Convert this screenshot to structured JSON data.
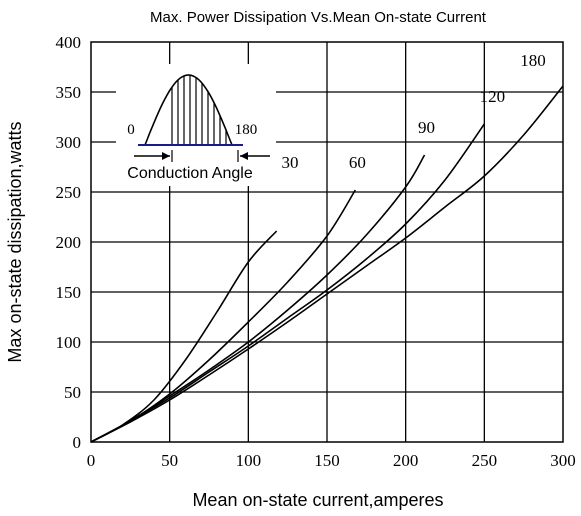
{
  "chart_data": {
    "type": "line",
    "title": "Max. Power Dissipation Vs.Mean On-state Current",
    "xlabel": "Mean on-state current,amperes",
    "ylabel": "Max on-state dissipation,watts",
    "xlim": [
      0,
      300
    ],
    "ylim": [
      0,
      400
    ],
    "xticks": [
      0,
      50,
      100,
      150,
      200,
      250,
      300
    ],
    "yticks": [
      0,
      50,
      100,
      150,
      200,
      250,
      300,
      350,
      400
    ],
    "x_tick_labels": [
      "0",
      "50",
      "100",
      "150",
      "200",
      "250",
      "300"
    ],
    "y_tick_labels": [
      "0",
      "50",
      "100",
      "150",
      "200",
      "250",
      "300",
      "350",
      "400"
    ],
    "grid": true,
    "series": [
      {
        "name": "30",
        "x": [
          0,
          20,
          40,
          60,
          80,
          100,
          118
        ],
        "y": [
          0,
          17,
          42,
          82,
          130,
          180,
          211
        ]
      },
      {
        "name": "60",
        "x": [
          0,
          25,
          50,
          75,
          100,
          125,
          150,
          168
        ],
        "y": [
          0,
          21,
          48,
          82,
          120,
          160,
          206,
          252
        ]
      },
      {
        "name": "90",
        "x": [
          0,
          25,
          50,
          75,
          100,
          125,
          150,
          175,
          200,
          212
        ],
        "y": [
          0,
          21,
          46,
          72,
          100,
          132,
          167,
          207,
          255,
          287
        ]
      },
      {
        "name": "120",
        "x": [
          0,
          25,
          50,
          75,
          100,
          125,
          150,
          175,
          200,
          225,
          250
        ],
        "y": [
          0,
          21,
          44,
          70,
          96,
          124,
          152,
          183,
          218,
          262,
          318
        ]
      },
      {
        "name": "180",
        "x": [
          0,
          25,
          50,
          75,
          100,
          125,
          150,
          175,
          200,
          225,
          250,
          275,
          300
        ],
        "y": [
          0,
          20,
          42,
          67,
          93,
          120,
          148,
          176,
          204,
          235,
          266,
          307,
          356
        ]
      }
    ],
    "inset": {
      "start_label": "0",
      "end_label": "180",
      "caption": "Conduction Angle"
    }
  }
}
